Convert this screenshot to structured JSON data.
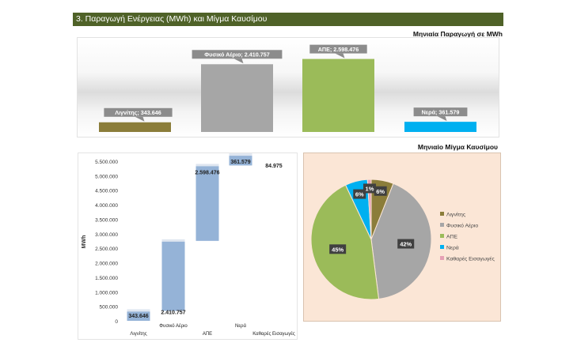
{
  "section": {
    "title": "3. Παραγωγή Ενέργειας (MWh) και Μίγμα Καυσίμου"
  },
  "colors": {
    "header": "#4f6228",
    "lignite": "#8b7d3a",
    "gas": "#a6a6a6",
    "res": "#9bbb59",
    "hydro": "#00b0f0",
    "imports": "#e6a0b4",
    "waterfall": "#95b3d7"
  },
  "chart_data": [
    {
      "type": "bar",
      "title": "Μηνιαία Παραγωγή σε MWh",
      "categories": [
        "Λιγνίτης",
        "Φυσικό Αέριο",
        "ΑΠΕ",
        "Νερά"
      ],
      "values": [
        343646,
        2410757,
        2598476,
        361579
      ],
      "data_labels": [
        "Λιγνίτης; 343.646",
        "Φυσικό Αέριο; 2.410.757",
        "ΑΠΕ; 2.598.476",
        "Νερά; 361.579"
      ],
      "ylim": [
        0,
        2700000
      ]
    },
    {
      "type": "bar",
      "subtype": "waterfall",
      "title": "",
      "ylabel": "MWh",
      "categories": [
        "Λιγνίτης",
        "Φυσικό Αέριο",
        "ΑΠΕ",
        "Νερά",
        "Καθαρές Εισαγωγές"
      ],
      "values": [
        343646,
        2410757,
        2598476,
        361579,
        84975
      ],
      "data_labels": [
        "343.646",
        "2.410.757",
        "2.598.476",
        "361.579",
        "84.975"
      ],
      "yticks": [
        "0",
        "500.000",
        "1.000.000",
        "1.500.000",
        "2.000.000",
        "2.500.000",
        "3.000.000",
        "3.500.000",
        "4.000.000",
        "4.500.000",
        "5.000.000",
        "5.500.000"
      ],
      "ylim": [
        0,
        5500000
      ]
    },
    {
      "type": "pie",
      "title": "Μηνιαίο Μίγμα Καυσίμου",
      "categories": [
        "Λιγνίτης",
        "Φυσικό Αέριο",
        "ΑΠΕ",
        "Νερά",
        "Καθαρές Εισαγωγές"
      ],
      "values": [
        6,
        42,
        45,
        6,
        1
      ],
      "data_labels": [
        "6%",
        "42%",
        "45%",
        "6%",
        "1%"
      ],
      "legend": "right"
    }
  ]
}
